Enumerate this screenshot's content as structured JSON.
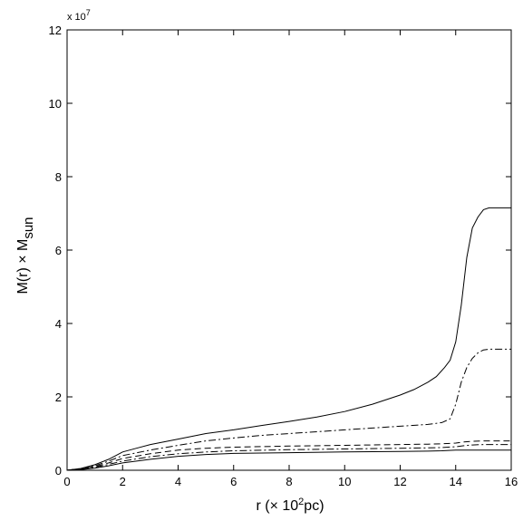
{
  "chart_data": {
    "type": "line",
    "title": "",
    "xlabel": {
      "main": "r (",
      "times": "×",
      "ten": " 10",
      "sup": "2",
      "unit": "pc)"
    },
    "ylabel": {
      "main": "M(r) ",
      "times": "×",
      "m": " M",
      "sub": "sun"
    },
    "y_multiplier": {
      "prefix": "x 10",
      "sup": "7"
    },
    "xlim": [
      0,
      16
    ],
    "ylim": [
      0,
      12
    ],
    "x_ticks": [
      0,
      2,
      4,
      6,
      8,
      10,
      12,
      14,
      16
    ],
    "y_ticks": [
      0,
      2,
      4,
      6,
      8,
      10,
      12
    ],
    "grid": false,
    "legend": "none",
    "series": [
      {
        "style": "solid",
        "color": "#000000",
        "x": [
          0,
          0.5,
          1,
          1.5,
          2,
          2.5,
          3,
          4,
          5,
          6,
          7,
          8,
          9,
          10,
          11,
          12,
          12.5,
          13,
          13.3,
          13.6,
          13.8,
          14.0,
          14.2,
          14.4,
          14.6,
          14.8,
          15.0,
          15.2,
          16
        ],
        "y": [
          0,
          0.05,
          0.15,
          0.3,
          0.5,
          0.6,
          0.7,
          0.85,
          1.0,
          1.1,
          1.22,
          1.33,
          1.45,
          1.6,
          1.8,
          2.05,
          2.2,
          2.4,
          2.55,
          2.8,
          3.0,
          3.5,
          4.5,
          5.8,
          6.6,
          6.9,
          7.1,
          7.15,
          7.15
        ]
      },
      {
        "style": "dashdot",
        "color": "#000000",
        "x": [
          0,
          0.5,
          1,
          1.5,
          2,
          3,
          4,
          5,
          6,
          7,
          8,
          9,
          10,
          11,
          12,
          13,
          13.5,
          13.8,
          14.0,
          14.2,
          14.4,
          14.6,
          14.8,
          15.0,
          15.2,
          16
        ],
        "y": [
          0,
          0.05,
          0.12,
          0.25,
          0.4,
          0.55,
          0.68,
          0.8,
          0.88,
          0.95,
          1.0,
          1.05,
          1.1,
          1.15,
          1.2,
          1.25,
          1.3,
          1.4,
          1.8,
          2.4,
          2.8,
          3.05,
          3.2,
          3.28,
          3.3,
          3.3
        ]
      },
      {
        "style": "dashed",
        "color": "#000000",
        "x": [
          0,
          0.5,
          1,
          1.5,
          2,
          3,
          4,
          5,
          6,
          8,
          10,
          12,
          13,
          13.5,
          14,
          14.3,
          14.6,
          15,
          16
        ],
        "y": [
          0,
          0.04,
          0.1,
          0.2,
          0.32,
          0.45,
          0.55,
          0.6,
          0.63,
          0.66,
          0.68,
          0.7,
          0.71,
          0.72,
          0.74,
          0.77,
          0.79,
          0.8,
          0.8
        ]
      },
      {
        "style": "dashdot",
        "color": "#000000",
        "x": [
          0,
          0.5,
          1,
          1.5,
          2,
          3,
          4,
          5,
          6,
          8,
          10,
          12,
          13,
          13.5,
          14,
          14.3,
          14.6,
          15,
          16
        ],
        "y": [
          0,
          0.03,
          0.08,
          0.16,
          0.25,
          0.37,
          0.45,
          0.5,
          0.53,
          0.56,
          0.58,
          0.6,
          0.61,
          0.62,
          0.64,
          0.67,
          0.69,
          0.7,
          0.7
        ]
      },
      {
        "style": "solid",
        "color": "#000000",
        "x": [
          0,
          0.5,
          1,
          1.5,
          2,
          3,
          4,
          5,
          6,
          8,
          10,
          12,
          13,
          13.5,
          14,
          16
        ],
        "y": [
          0,
          0.02,
          0.06,
          0.12,
          0.2,
          0.3,
          0.38,
          0.43,
          0.46,
          0.48,
          0.5,
          0.51,
          0.52,
          0.53,
          0.55,
          0.55
        ]
      }
    ]
  }
}
